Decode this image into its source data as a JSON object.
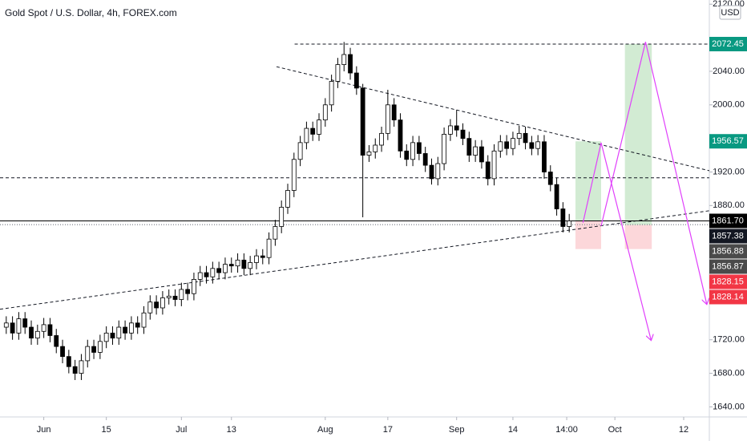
{
  "chart_data": {
    "type": "candlestick",
    "title": "Gold Spot / U.S. Dollar, 4h, FOREX.com",
    "currency": "USD",
    "up_color": "#ffffff",
    "down_color": "#000000",
    "xlim": [
      -7,
      106.4
    ],
    "ylim": [
      1628,
      2125
    ],
    "xticks": [
      {
        "value": 0,
        "label": "Jun"
      },
      {
        "value": 10,
        "label": "15"
      },
      {
        "value": 22,
        "label": "Jul"
      },
      {
        "value": 30,
        "label": "13"
      },
      {
        "value": 45,
        "label": "Aug"
      },
      {
        "value": 55,
        "label": "17"
      },
      {
        "value": 66,
        "label": "Sep"
      },
      {
        "value": 75,
        "label": "14"
      },
      {
        "value": 83.6,
        "label": "14:00"
      },
      {
        "value": 91.3,
        "label": "Oct"
      },
      {
        "value": 102.3,
        "label": "12"
      }
    ],
    "yticks": [
      {
        "value": 2120,
        "label": "2120.00"
      },
      {
        "value": 2040,
        "label": "2040.00"
      },
      {
        "value": 2000,
        "label": "2000.00"
      },
      {
        "value": 1920,
        "label": "1920.00"
      },
      {
        "value": 1880,
        "label": "1880.00"
      },
      {
        "value": 1720,
        "label": "1720.00"
      },
      {
        "value": 1680,
        "label": "1680.00"
      },
      {
        "value": 1640,
        "label": "1640.00"
      }
    ],
    "x": [
      -6,
      -5,
      -4,
      -3,
      -2,
      -1,
      0,
      1,
      2,
      3,
      4,
      5,
      6,
      7,
      8,
      9,
      10,
      11,
      12,
      13,
      14,
      15,
      16,
      17,
      18,
      19,
      20,
      21,
      22,
      23,
      24,
      25,
      26,
      27,
      28,
      29,
      30,
      31,
      32,
      33,
      34,
      35,
      36,
      37,
      38,
      39,
      40,
      41,
      42,
      43,
      44,
      45,
      46,
      47,
      48,
      49,
      50,
      51,
      52,
      53,
      54,
      55,
      56,
      57,
      58,
      59,
      60,
      61,
      62,
      63,
      64,
      65,
      66,
      67,
      68,
      69,
      70,
      71,
      72,
      73,
      74,
      75,
      76,
      77,
      78,
      79,
      80,
      81,
      82,
      83,
      84
    ],
    "open": [
      1735,
      1740,
      1728,
      1745,
      1735,
      1722,
      1730,
      1738,
      1725,
      1712,
      1700,
      1688,
      1680,
      1695,
      1712,
      1705,
      1718,
      1728,
      1722,
      1735,
      1728,
      1740,
      1735,
      1752,
      1765,
      1758,
      1770,
      1772,
      1768,
      1780,
      1775,
      1792,
      1800,
      1795,
      1805,
      1800,
      1810,
      1808,
      1815,
      1805,
      1812,
      1820,
      1818,
      1840,
      1855,
      1878,
      1898,
      1935,
      1955,
      1972,
      1965,
      1982,
      2000,
      2028,
      2048,
      2060,
      2038,
      2020,
      1940,
      1944,
      1952,
      1966,
      2000,
      1982,
      1945,
      1935,
      1955,
      1942,
      1928,
      1912,
      1930,
      1965,
      1975,
      1970,
      1960,
      1940,
      1950,
      1932,
      1912,
      1945,
      1956,
      1948,
      1960,
      1966,
      1955,
      1948,
      1956,
      1920,
      1905,
      1876,
      1855
    ],
    "high": [
      1748,
      1748,
      1753,
      1753,
      1743,
      1738,
      1746,
      1746,
      1733,
      1720,
      1708,
      1696,
      1703,
      1720,
      1720,
      1726,
      1736,
      1736,
      1743,
      1743,
      1748,
      1748,
      1760,
      1773,
      1773,
      1778,
      1780,
      1780,
      1788,
      1788,
      1800,
      1808,
      1808,
      1813,
      1813,
      1818,
      1818,
      1823,
      1823,
      1820,
      1828,
      1828,
      1848,
      1863,
      1886,
      1906,
      1943,
      1963,
      1980,
      1980,
      1990,
      2008,
      2036,
      2056,
      2075,
      2068,
      2046,
      2025,
      1952,
      1960,
      1974,
      2018,
      2008,
      1990,
      1953,
      1963,
      1963,
      1950,
      1936,
      1938,
      1973,
      1983,
      1994,
      1978,
      1968,
      1958,
      1958,
      1940,
      1953,
      1964,
      1964,
      1968,
      1975,
      1974,
      1963,
      1964,
      1964,
      1928,
      1913,
      1884,
      1870
    ],
    "low": [
      1727,
      1720,
      1720,
      1727,
      1714,
      1714,
      1722,
      1717,
      1704,
      1692,
      1680,
      1672,
      1672,
      1687,
      1697,
      1697,
      1710,
      1714,
      1714,
      1720,
      1720,
      1727,
      1727,
      1744,
      1750,
      1750,
      1762,
      1760,
      1760,
      1767,
      1767,
      1784,
      1787,
      1787,
      1792,
      1792,
      1800,
      1800,
      1797,
      1797,
      1804,
      1810,
      1810,
      1832,
      1847,
      1870,
      1890,
      1927,
      1947,
      1957,
      1957,
      1974,
      1992,
      2020,
      2040,
      2030,
      2012,
      1866,
      1932,
      1936,
      1944,
      1958,
      1974,
      1937,
      1927,
      1927,
      1934,
      1920,
      1905,
      1904,
      1922,
      1957,
      1962,
      1952,
      1932,
      1932,
      1924,
      1904,
      1904,
      1937,
      1940,
      1940,
      1952,
      1947,
      1940,
      1940,
      1912,
      1897,
      1868,
      1848,
      1848
    ],
    "close": [
      1740,
      1728,
      1745,
      1735,
      1722,
      1730,
      1738,
      1725,
      1712,
      1700,
      1688,
      1680,
      1695,
      1712,
      1705,
      1718,
      1728,
      1722,
      1735,
      1728,
      1740,
      1735,
      1752,
      1765,
      1758,
      1770,
      1772,
      1768,
      1780,
      1775,
      1792,
      1800,
      1795,
      1805,
      1800,
      1810,
      1808,
      1815,
      1805,
      1812,
      1820,
      1818,
      1840,
      1855,
      1878,
      1898,
      1935,
      1955,
      1972,
      1965,
      1982,
      2000,
      2028,
      2048,
      2060,
      2038,
      2020,
      1940,
      1944,
      1952,
      1966,
      2000,
      1982,
      1945,
      1935,
      1955,
      1942,
      1928,
      1912,
      1930,
      1965,
      1975,
      1970,
      1960,
      1940,
      1950,
      1932,
      1912,
      1945,
      1956,
      1948,
      1960,
      1966,
      1955,
      1948,
      1956,
      1920,
      1905,
      1876,
      1855,
      1861.7
    ],
    "price_tags": [
      {
        "value": 2072.45,
        "color": "#089981"
      },
      {
        "value": 1956.57,
        "color": "#089981"
      },
      {
        "value": 1861.7,
        "label": "1861.70",
        "color": "#000000"
      },
      {
        "value": 1857.38,
        "color": "#131722"
      },
      {
        "value": 1856.88,
        "color": "#4a4a4a"
      },
      {
        "value": 1856.87,
        "color": "#4a4a4a"
      },
      {
        "value": 1828.15,
        "color": "#f23645"
      },
      {
        "value": 1828.14,
        "color": "#f23645"
      }
    ],
    "trend_lines": [
      {
        "x": [
          40.1,
          106.4
        ],
        "y": [
          2072.45,
          2072.45
        ]
      },
      {
        "x": [
          -7,
          106.4
        ],
        "y": [
          1913,
          1913
        ]
      },
      {
        "x": [
          37.2,
          106.4
        ],
        "y": [
          2045.5,
          1921.5
        ]
      },
      {
        "x": [
          -7,
          106.4
        ],
        "y": [
          1756.4,
          1873.8
        ]
      }
    ],
    "positions": [
      {
        "x": [
          85.0,
          89.1
        ],
        "entry": 1861.7,
        "target": 1956.57,
        "stop": 1828.15
      },
      {
        "x": [
          92.9,
          97.2
        ],
        "entry": 1856.88,
        "target": 2072.45,
        "stop": 1828.14
      }
    ],
    "projections": [
      {
        "x": [
          86.2,
          89.1,
          97.1
        ],
        "y": [
          1859.5,
          1954.9,
          1719.2
        ]
      },
      {
        "x": [
          89.1,
          96.2,
          106.0
        ],
        "y": [
          1855.6,
          2075.1,
          1762.1
        ]
      }
    ]
  }
}
